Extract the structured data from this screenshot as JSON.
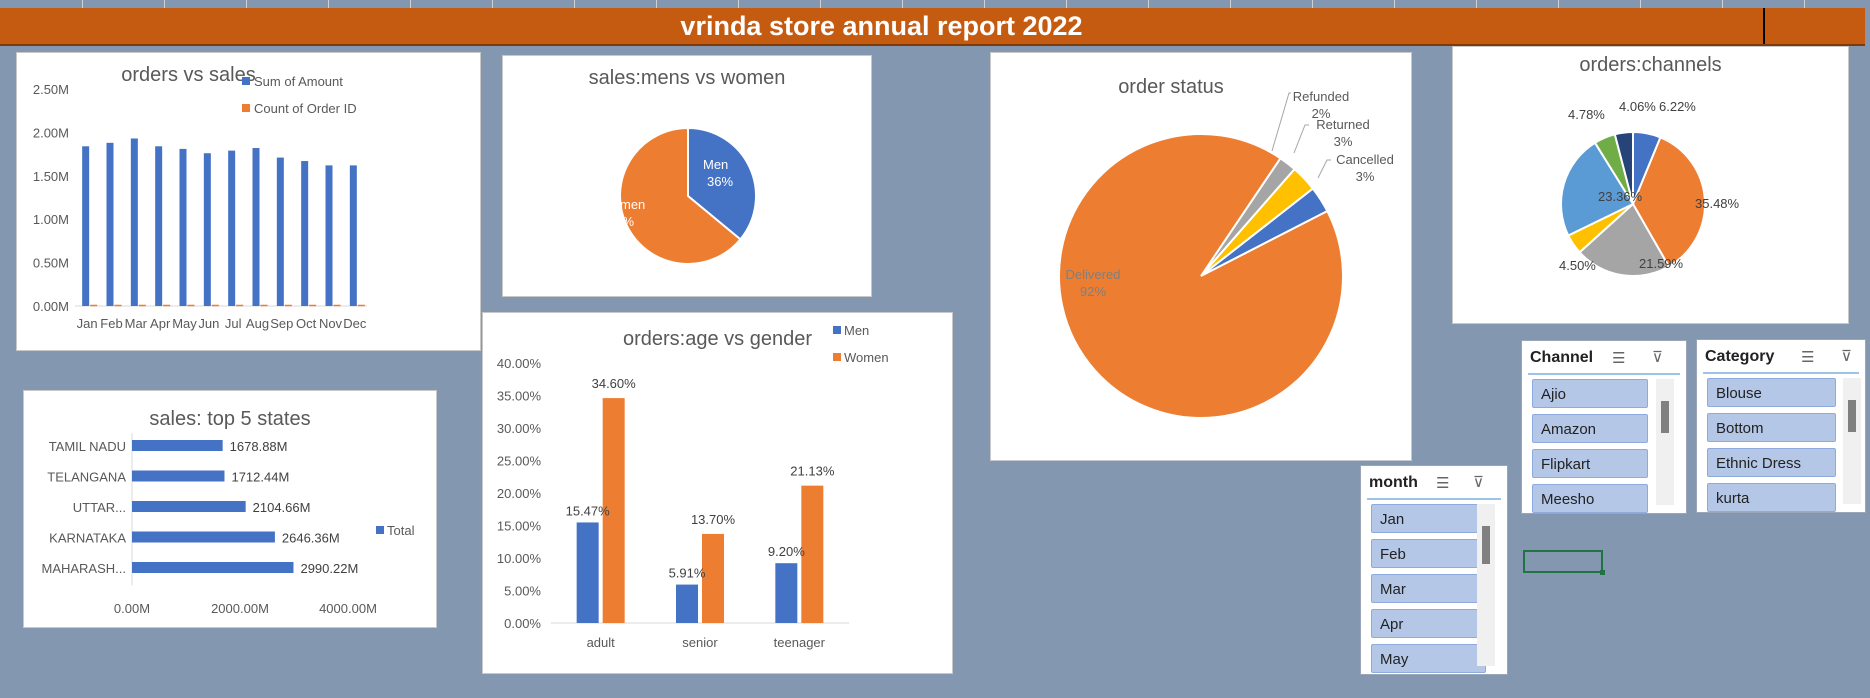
{
  "dashboard": {
    "title": "vrinda store annual report 2022"
  },
  "colors": {
    "blue": "#4472c4",
    "orange": "#ed7d31",
    "gray": "#a5a5a5",
    "yellow": "#ffc000",
    "lightblue": "#5b9bd5",
    "green": "#70ad47",
    "navy": "#264478"
  },
  "chart_data": [
    {
      "type": "bar",
      "title": "orders vs  sales",
      "categories": [
        "Jan",
        "Feb",
        "Mar",
        "Apr",
        "May",
        "Jun",
        "Jul",
        "Aug",
        "Sep",
        "Oct",
        "Nov",
        "Dec"
      ],
      "series": [
        {
          "name": "Sum of Amount",
          "values": [
            1.84,
            1.88,
            1.93,
            1.84,
            1.81,
            1.76,
            1.79,
            1.82,
            1.71,
            1.67,
            1.62,
            1.62
          ]
        },
        {
          "name": "Count of Order ID",
          "values": [
            0.003,
            0.003,
            0.003,
            0.003,
            0.003,
            0.003,
            0.003,
            0.003,
            0.003,
            0.003,
            0.003,
            0.003
          ]
        }
      ],
      "ylim": [
        0,
        2.5
      ],
      "y_ticks": [
        "0.00M",
        "0.50M",
        "1.00M",
        "1.50M",
        "2.00M",
        "2.50M"
      ],
      "legend": "top-right"
    },
    {
      "type": "pie",
      "title": "sales:mens vs women",
      "slices": [
        {
          "label": "Men",
          "value": 36,
          "pct": "36%"
        },
        {
          "label": "Women",
          "value": 64,
          "pct": "64%"
        }
      ]
    },
    {
      "type": "pie",
      "title": "order status",
      "slices": [
        {
          "label": "Delivered",
          "value": 92,
          "pct": "92%"
        },
        {
          "label": "Refunded",
          "value": 2,
          "pct": "2%"
        },
        {
          "label": "Returned",
          "value": 3,
          "pct": "3%"
        },
        {
          "label": "Cancelled",
          "value": 3,
          "pct": "3%"
        }
      ]
    },
    {
      "type": "pie",
      "title": "orders:channels",
      "slices": [
        {
          "value": 6.22,
          "pct": "6.22%"
        },
        {
          "value": 35.48,
          "pct": "35.48%"
        },
        {
          "value": 21.59,
          "pct": "21.59%"
        },
        {
          "value": 4.5,
          "pct": "4.50%"
        },
        {
          "value": 23.36,
          "pct": "23.36%"
        },
        {
          "value": 4.78,
          "pct": "4.78%"
        },
        {
          "value": 4.06,
          "pct": "4.06%"
        }
      ]
    },
    {
      "type": "bar",
      "orientation": "horizontal",
      "title": "sales: top 5 states",
      "categories": [
        "TAMIL NADU",
        "TELANGANA",
        "UTTAR...",
        "KARNATAKA",
        "MAHARASH..."
      ],
      "series": [
        {
          "name": "Total",
          "values": [
            1678.88,
            1712.44,
            2104.66,
            2646.36,
            2990.22
          ]
        }
      ],
      "data_labels": [
        "1678.88M",
        "1712.44M",
        "2104.66M",
        "2646.36M",
        "2990.22M"
      ],
      "xlim": [
        0,
        4000
      ],
      "x_ticks": [
        "0.00M",
        "2000.00M",
        "4000.00M"
      ],
      "legend": "right"
    },
    {
      "type": "bar",
      "title": "orders:age vs gender",
      "categories": [
        "adult",
        "senior",
        "teenager"
      ],
      "series": [
        {
          "name": "Men",
          "values": [
            15.47,
            5.91,
            9.2
          ],
          "labels": [
            "15.47%",
            "5.91%",
            "9.20%"
          ]
        },
        {
          "name": "Women",
          "values": [
            34.6,
            13.7,
            21.13
          ],
          "labels": [
            "34.60%",
            "13.70%",
            "21.13%"
          ]
        }
      ],
      "ylim": [
        0,
        40
      ],
      "y_ticks": [
        "0.00%",
        "5.00%",
        "10.00%",
        "15.00%",
        "20.00%",
        "25.00%",
        "30.00%",
        "35.00%",
        "40.00%"
      ],
      "legend": "top-right"
    }
  ],
  "slicers": {
    "month": {
      "title": "month",
      "items": [
        "Jan",
        "Feb",
        "Mar",
        "Apr",
        "May"
      ]
    },
    "channel": {
      "title": "Channel",
      "items": [
        "Ajio",
        "Amazon",
        "Flipkart",
        "Meesho"
      ]
    },
    "category": {
      "title": "Category",
      "items": [
        "Blouse",
        "Bottom",
        "Ethnic Dress",
        "kurta"
      ]
    }
  }
}
